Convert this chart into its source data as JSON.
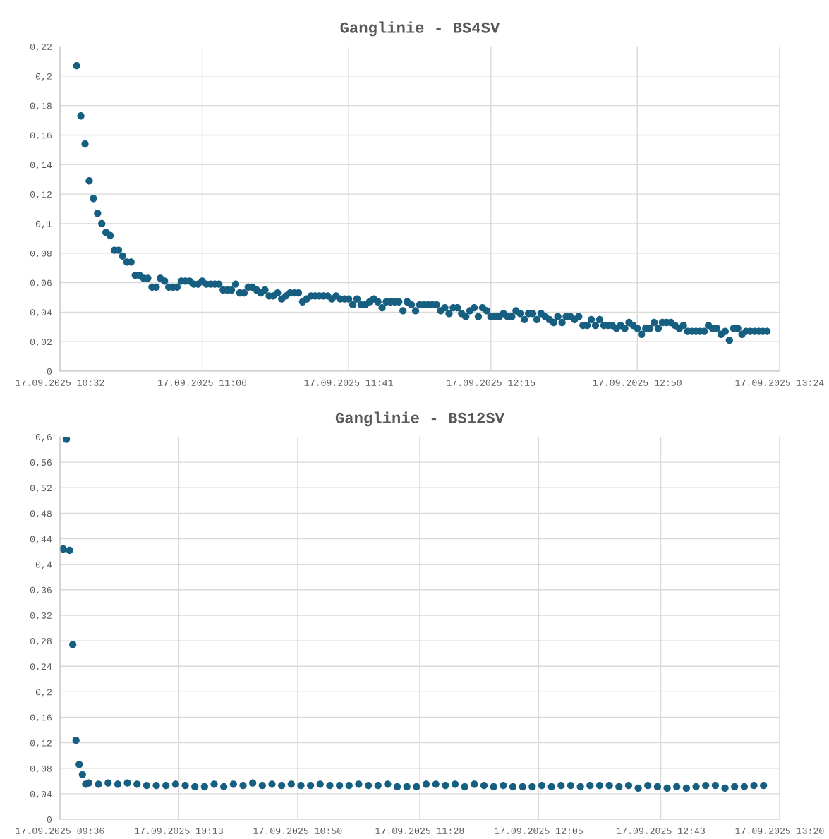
{
  "chart_data": [
    {
      "type": "scatter",
      "title": "Ganglinie - BS4SV",
      "marker": "circle",
      "grid": true,
      "xlim": [
        "2025-09-17T10:32",
        "2025-09-17T13:24"
      ],
      "xticks": [
        {
          "value": "2025-09-17T10:32",
          "label": "17.09.2025 10:32"
        },
        {
          "value": "2025-09-17T11:06",
          "label": "17.09.2025 11:06"
        },
        {
          "value": "2025-09-17T11:41",
          "label": "17.09.2025 11:41"
        },
        {
          "value": "2025-09-17T12:15",
          "label": "17.09.2025 12:15"
        },
        {
          "value": "2025-09-17T12:50",
          "label": "17.09.2025 12:50"
        },
        {
          "value": "2025-09-17T13:24",
          "label": "17.09.2025 13:24"
        }
      ],
      "ylim": [
        0,
        0.22
      ],
      "yticks": [
        0,
        {
          "value": 0.02,
          "label": "0,02"
        },
        {
          "value": 0.04,
          "label": "0,04"
        },
        {
          "value": 0.06,
          "label": "0,06"
        },
        {
          "value": 0.08,
          "label": "0,08"
        },
        {
          "value": 0.1,
          "label": "0,1"
        },
        {
          "value": 0.12,
          "label": "0,12"
        },
        {
          "value": 0.14,
          "label": "0,14"
        },
        {
          "value": 0.16,
          "label": "0,16"
        },
        {
          "value": 0.18,
          "label": "0,18"
        },
        {
          "value": 0.2,
          "label": "0,2"
        },
        {
          "value": 0.22,
          "label": "0,22"
        }
      ],
      "series": [
        {
          "color": "#175f80",
          "x": [
            "2025-09-17T10:36",
            "2025-09-17T10:37",
            "2025-09-17T10:38",
            "2025-09-17T10:39",
            "2025-09-17T10:40",
            "2025-09-17T10:41",
            "2025-09-17T10:42",
            "2025-09-17T10:43",
            "2025-09-17T10:44",
            "2025-09-17T10:45",
            "2025-09-17T10:46",
            "2025-09-17T10:47",
            "2025-09-17T10:48",
            "2025-09-17T10:49",
            "2025-09-17T10:50",
            "2025-09-17T10:51",
            "2025-09-17T10:52",
            "2025-09-17T10:53",
            "2025-09-17T10:54",
            "2025-09-17T10:55",
            "2025-09-17T10:56",
            "2025-09-17T10:57",
            "2025-09-17T10:58",
            "2025-09-17T10:59",
            "2025-09-17T11:00",
            "2025-09-17T11:01",
            "2025-09-17T11:02",
            "2025-09-17T11:03",
            "2025-09-17T11:04",
            "2025-09-17T11:05",
            "2025-09-17T11:06",
            "2025-09-17T11:07",
            "2025-09-17T11:08",
            "2025-09-17T11:09",
            "2025-09-17T11:10",
            "2025-09-17T11:11",
            "2025-09-17T11:12",
            "2025-09-17T11:13",
            "2025-09-17T11:14",
            "2025-09-17T11:15",
            "2025-09-17T11:16",
            "2025-09-17T11:17",
            "2025-09-17T11:18",
            "2025-09-17T11:19",
            "2025-09-17T11:20",
            "2025-09-17T11:21",
            "2025-09-17T11:22",
            "2025-09-17T11:23",
            "2025-09-17T11:24",
            "2025-09-17T11:25",
            "2025-09-17T11:26",
            "2025-09-17T11:27",
            "2025-09-17T11:28",
            "2025-09-17T11:29",
            "2025-09-17T11:30",
            "2025-09-17T11:31",
            "2025-09-17T11:32",
            "2025-09-17T11:33",
            "2025-09-17T11:34",
            "2025-09-17T11:35",
            "2025-09-17T11:36",
            "2025-09-17T11:37",
            "2025-09-17T11:38",
            "2025-09-17T11:39",
            "2025-09-17T11:40",
            "2025-09-17T11:41",
            "2025-09-17T11:42",
            "2025-09-17T11:43",
            "2025-09-17T11:44",
            "2025-09-17T11:45",
            "2025-09-17T11:46",
            "2025-09-17T11:47",
            "2025-09-17T11:48",
            "2025-09-17T11:49",
            "2025-09-17T11:50",
            "2025-09-17T11:51",
            "2025-09-17T11:52",
            "2025-09-17T11:53",
            "2025-09-17T11:54",
            "2025-09-17T11:55",
            "2025-09-17T11:56",
            "2025-09-17T11:57",
            "2025-09-17T11:58",
            "2025-09-17T11:59",
            "2025-09-17T12:00",
            "2025-09-17T12:01",
            "2025-09-17T12:02",
            "2025-09-17T12:03",
            "2025-09-17T12:04",
            "2025-09-17T12:05",
            "2025-09-17T12:06",
            "2025-09-17T12:07",
            "2025-09-17T12:08",
            "2025-09-17T12:09",
            "2025-09-17T12:10",
            "2025-09-17T12:11",
            "2025-09-17T12:12",
            "2025-09-17T12:13",
            "2025-09-17T12:14",
            "2025-09-17T12:15",
            "2025-09-17T12:16",
            "2025-09-17T12:17",
            "2025-09-17T12:18",
            "2025-09-17T12:19",
            "2025-09-17T12:20",
            "2025-09-17T12:21",
            "2025-09-17T12:22",
            "2025-09-17T12:23",
            "2025-09-17T12:24",
            "2025-09-17T12:25",
            "2025-09-17T12:26",
            "2025-09-17T12:27",
            "2025-09-17T12:28",
            "2025-09-17T12:29",
            "2025-09-17T12:30",
            "2025-09-17T12:31",
            "2025-09-17T12:32",
            "2025-09-17T12:33",
            "2025-09-17T12:34",
            "2025-09-17T12:35",
            "2025-09-17T12:36",
            "2025-09-17T12:37",
            "2025-09-17T12:38",
            "2025-09-17T12:39",
            "2025-09-17T12:40",
            "2025-09-17T12:41",
            "2025-09-17T12:42",
            "2025-09-17T12:43",
            "2025-09-17T12:44",
            "2025-09-17T12:45",
            "2025-09-17T12:46",
            "2025-09-17T12:47",
            "2025-09-17T12:48",
            "2025-09-17T12:49",
            "2025-09-17T12:50",
            "2025-09-17T12:51",
            "2025-09-17T12:52",
            "2025-09-17T12:53",
            "2025-09-17T12:54",
            "2025-09-17T12:55",
            "2025-09-17T12:56",
            "2025-09-17T12:57",
            "2025-09-17T12:58",
            "2025-09-17T12:59",
            "2025-09-17T13:00",
            "2025-09-17T13:01",
            "2025-09-17T13:02",
            "2025-09-17T13:03",
            "2025-09-17T13:04",
            "2025-09-17T13:05",
            "2025-09-17T13:06",
            "2025-09-17T13:07",
            "2025-09-17T13:08",
            "2025-09-17T13:09",
            "2025-09-17T13:10",
            "2025-09-17T13:11",
            "2025-09-17T13:12",
            "2025-09-17T13:13",
            "2025-09-17T13:14",
            "2025-09-17T13:15",
            "2025-09-17T13:16",
            "2025-09-17T13:17",
            "2025-09-17T13:18",
            "2025-09-17T13:19",
            "2025-09-17T13:20",
            "2025-09-17T13:21"
          ],
          "values": [
            0.207,
            0.173,
            0.154,
            0.129,
            0.117,
            0.107,
            0.1,
            0.094,
            0.092,
            0.082,
            0.082,
            0.078,
            0.074,
            0.074,
            0.065,
            0.065,
            0.063,
            0.063,
            0.057,
            0.057,
            0.063,
            0.061,
            0.057,
            0.057,
            0.057,
            0.061,
            0.061,
            0.061,
            0.059,
            0.059,
            0.061,
            0.059,
            0.059,
            0.059,
            0.059,
            0.055,
            0.055,
            0.055,
            0.059,
            0.053,
            0.053,
            0.057,
            0.057,
            0.055,
            0.053,
            0.055,
            0.051,
            0.051,
            0.053,
            0.049,
            0.051,
            0.053,
            0.053,
            0.053,
            0.047,
            0.049,
            0.051,
            0.051,
            0.051,
            0.051,
            0.051,
            0.049,
            0.051,
            0.049,
            0.049,
            0.049,
            0.045,
            0.049,
            0.045,
            0.045,
            0.047,
            0.049,
            0.047,
            0.043,
            0.047,
            0.047,
            0.047,
            0.047,
            0.041,
            0.047,
            0.045,
            0.041,
            0.045,
            0.045,
            0.045,
            0.045,
            0.045,
            0.041,
            0.043,
            0.039,
            0.043,
            0.043,
            0.039,
            0.037,
            0.041,
            0.043,
            0.037,
            0.043,
            0.041,
            0.037,
            0.037,
            0.037,
            0.039,
            0.037,
            0.037,
            0.041,
            0.039,
            0.035,
            0.039,
            0.039,
            0.035,
            0.039,
            0.037,
            0.035,
            0.033,
            0.037,
            0.033,
            0.037,
            0.037,
            0.035,
            0.037,
            0.031,
            0.031,
            0.035,
            0.031,
            0.035,
            0.031,
            0.031,
            0.031,
            0.029,
            0.031,
            0.029,
            0.033,
            0.031,
            0.029,
            0.025,
            0.029,
            0.029,
            0.033,
            0.029,
            0.033,
            0.033,
            0.033,
            0.031,
            0.029,
            0.031,
            0.027,
            0.027,
            0.027,
            0.027,
            0.027,
            0.031,
            0.029,
            0.029,
            0.025,
            0.027,
            0.021,
            0.029,
            0.029,
            0.025,
            0.027,
            0.027,
            0.027,
            0.027,
            0.027,
            0.027
          ]
        }
      ]
    },
    {
      "type": "scatter",
      "title": "Ganglinie - BS12SV",
      "marker": "circle",
      "grid": true,
      "xlim": [
        "2025-09-17T09:36",
        "2025-09-17T13:20"
      ],
      "xticks": [
        {
          "value": "2025-09-17T09:36",
          "label": "17.09.2025 09:36"
        },
        {
          "value": "2025-09-17T10:13",
          "label": "17.09.2025 10:13"
        },
        {
          "value": "2025-09-17T10:50",
          "label": "17.09.2025 10:50"
        },
        {
          "value": "2025-09-17T11:28",
          "label": "17.09.2025 11:28"
        },
        {
          "value": "2025-09-17T12:05",
          "label": "17.09.2025 12:05"
        },
        {
          "value": "2025-09-17T12:43",
          "label": "17.09.2025 12:43"
        },
        {
          "value": "2025-09-17T13:20",
          "label": "17.09.2025 13:20"
        }
      ],
      "ylim": [
        0,
        0.6
      ],
      "yticks": [
        0,
        {
          "value": 0.04,
          "label": "0,04"
        },
        {
          "value": 0.08,
          "label": "0,08"
        },
        {
          "value": 0.12,
          "label": "0,12"
        },
        {
          "value": 0.16,
          "label": "0,16"
        },
        {
          "value": 0.2,
          "label": "0,2"
        },
        {
          "value": 0.24,
          "label": "0,24"
        },
        {
          "value": 0.28,
          "label": "0,28"
        },
        {
          "value": 0.32,
          "label": "0,32"
        },
        {
          "value": 0.36,
          "label": "0,36"
        },
        {
          "value": 0.4,
          "label": "0,4"
        },
        {
          "value": 0.44,
          "label": "0,44"
        },
        {
          "value": 0.48,
          "label": "0,48"
        },
        {
          "value": 0.52,
          "label": "0,52"
        },
        {
          "value": 0.56,
          "label": "0,56"
        },
        {
          "value": 0.6,
          "label": "0,6"
        }
      ],
      "series": [
        {
          "color": "#175f80",
          "x": [
            "2025-09-17T09:37",
            "2025-09-17T09:38",
            "2025-09-17T09:39",
            "2025-09-17T09:40",
            "2025-09-17T09:41",
            "2025-09-17T09:42",
            "2025-09-17T09:43",
            "2025-09-17T09:44",
            "2025-09-17T09:45",
            "2025-09-17T09:48",
            "2025-09-17T09:51",
            "2025-09-17T09:54",
            "2025-09-17T09:57",
            "2025-09-17T10:00",
            "2025-09-17T10:03",
            "2025-09-17T10:06",
            "2025-09-17T10:09",
            "2025-09-17T10:12",
            "2025-09-17T10:15",
            "2025-09-17T10:18",
            "2025-09-17T10:21",
            "2025-09-17T10:24",
            "2025-09-17T10:27",
            "2025-09-17T10:30",
            "2025-09-17T10:33",
            "2025-09-17T10:36",
            "2025-09-17T10:39",
            "2025-09-17T10:42",
            "2025-09-17T10:45",
            "2025-09-17T10:48",
            "2025-09-17T10:51",
            "2025-09-17T10:54",
            "2025-09-17T10:57",
            "2025-09-17T11:00",
            "2025-09-17T11:03",
            "2025-09-17T11:06",
            "2025-09-17T11:09",
            "2025-09-17T11:12",
            "2025-09-17T11:15",
            "2025-09-17T11:18",
            "2025-09-17T11:21",
            "2025-09-17T11:24",
            "2025-09-17T11:27",
            "2025-09-17T11:30",
            "2025-09-17T11:33",
            "2025-09-17T11:36",
            "2025-09-17T11:39",
            "2025-09-17T11:42",
            "2025-09-17T11:45",
            "2025-09-17T11:48",
            "2025-09-17T11:51",
            "2025-09-17T11:54",
            "2025-09-17T11:57",
            "2025-09-17T12:00",
            "2025-09-17T12:03",
            "2025-09-17T12:06",
            "2025-09-17T12:09",
            "2025-09-17T12:12",
            "2025-09-17T12:15",
            "2025-09-17T12:18",
            "2025-09-17T12:21",
            "2025-09-17T12:24",
            "2025-09-17T12:27",
            "2025-09-17T12:30",
            "2025-09-17T12:33",
            "2025-09-17T12:36",
            "2025-09-17T12:39",
            "2025-09-17T12:42",
            "2025-09-17T12:45",
            "2025-09-17T12:48",
            "2025-09-17T12:51",
            "2025-09-17T12:54",
            "2025-09-17T12:57",
            "2025-09-17T13:00",
            "2025-09-17T13:03",
            "2025-09-17T13:06",
            "2025-09-17T13:09",
            "2025-09-17T13:12",
            "2025-09-17T13:15"
          ],
          "values": [
            0.424,
            0.596,
            0.422,
            0.274,
            0.124,
            0.086,
            0.07,
            0.055,
            0.057,
            0.055,
            0.057,
            0.055,
            0.057,
            0.055,
            0.053,
            0.053,
            0.053,
            0.055,
            0.053,
            0.051,
            0.051,
            0.055,
            0.051,
            0.055,
            0.053,
            0.057,
            0.053,
            0.055,
            0.053,
            0.055,
            0.053,
            0.053,
            0.055,
            0.053,
            0.053,
            0.053,
            0.055,
            0.053,
            0.053,
            0.055,
            0.051,
            0.051,
            0.051,
            0.055,
            0.055,
            0.053,
            0.055,
            0.051,
            0.055,
            0.053,
            0.051,
            0.053,
            0.051,
            0.051,
            0.051,
            0.053,
            0.051,
            0.053,
            0.053,
            0.051,
            0.053,
            0.053,
            0.053,
            0.051,
            0.053,
            0.049,
            0.053,
            0.051,
            0.049,
            0.051,
            0.049,
            0.051,
            0.053,
            0.053,
            0.049,
            0.051,
            0.051,
            0.053,
            0.053
          ]
        }
      ]
    }
  ]
}
